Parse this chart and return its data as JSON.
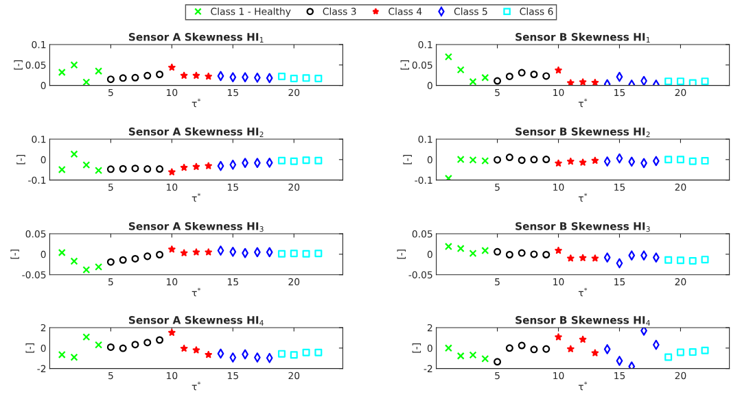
{
  "chart_data": [
    {
      "type": "scatter",
      "title": "Sensor A Skewness HI$_{1}$",
      "xlabel": "τ$^{*}$",
      "ylabel": "[-]",
      "xlim": [
        0,
        24
      ],
      "xticks": [
        5,
        10,
        15,
        20
      ],
      "ylim": [
        0,
        0.1
      ],
      "yticks": [
        0,
        0.05,
        0.1
      ],
      "legend": "top",
      "series": [
        {
          "name": "Class 1 - Healthy",
          "color": "#00ff00",
          "marker": "cross",
          "x": [
            1,
            2,
            3,
            4
          ],
          "values": [
            0.032,
            0.05,
            0.008,
            0.035
          ]
        },
        {
          "name": "Class 3",
          "color": "#000000",
          "marker": "circle",
          "x": [
            5,
            6,
            7,
            8,
            9
          ],
          "values": [
            0.015,
            0.018,
            0.019,
            0.024,
            0.027
          ]
        },
        {
          "name": "Class 4",
          "color": "#ff0000",
          "marker": "star",
          "x": [
            10,
            11,
            12,
            13
          ],
          "values": [
            0.044,
            0.024,
            0.024,
            0.022
          ]
        },
        {
          "name": "Class 5",
          "color": "#0000ff",
          "marker": "diamond",
          "x": [
            14,
            15,
            16,
            17,
            18
          ],
          "values": [
            0.023,
            0.02,
            0.02,
            0.019,
            0.018
          ]
        },
        {
          "name": "Class 6",
          "color": "#00ffff",
          "marker": "square",
          "x": [
            19,
            20,
            21,
            22
          ],
          "values": [
            0.022,
            0.017,
            0.018,
            0.017
          ]
        }
      ]
    },
    {
      "type": "scatter",
      "title": "Sensor B Skewness HI$_{1}$",
      "xlabel": "τ$^{*}$",
      "ylabel": "[-]",
      "xlim": [
        0,
        24
      ],
      "xticks": [
        5,
        10,
        15,
        20
      ],
      "ylim": [
        0,
        0.1
      ],
      "yticks": [
        0,
        0.05,
        0.1
      ],
      "series": [
        {
          "color": "#00ff00",
          "marker": "cross",
          "x": [
            1,
            2,
            3,
            4
          ],
          "values": [
            0.07,
            0.038,
            0.009,
            0.019
          ]
        },
        {
          "color": "#000000",
          "marker": "circle",
          "x": [
            5,
            6,
            7,
            8,
            9
          ],
          "values": [
            0.011,
            0.022,
            0.031,
            0.027,
            0.023
          ]
        },
        {
          "color": "#ff0000",
          "marker": "star",
          "x": [
            10,
            11,
            12,
            13
          ],
          "values": [
            0.037,
            0.006,
            0.008,
            0.007
          ]
        },
        {
          "color": "#0000ff",
          "marker": "diamond",
          "x": [
            14,
            15,
            16,
            17,
            18
          ],
          "values": [
            0.003,
            0.021,
            0.002,
            0.011,
            0.002
          ]
        },
        {
          "color": "#00ffff",
          "marker": "square",
          "x": [
            19,
            20,
            21,
            22
          ],
          "values": [
            0.01,
            0.01,
            0.006,
            0.01
          ]
        }
      ]
    },
    {
      "type": "scatter",
      "title": "Sensor A Skewness HI$_{2}$",
      "xlabel": "τ$^{*}$",
      "ylabel": "[-]",
      "xlim": [
        0,
        24
      ],
      "xticks": [
        5,
        10,
        15,
        20
      ],
      "ylim": [
        -0.1,
        0.1
      ],
      "yticks": [
        -0.1,
        0,
        0.1
      ],
      "series": [
        {
          "color": "#00ff00",
          "marker": "cross",
          "x": [
            1,
            2,
            3,
            4
          ],
          "values": [
            -0.049,
            0.027,
            -0.026,
            -0.053
          ]
        },
        {
          "color": "#000000",
          "marker": "circle",
          "x": [
            5,
            6,
            7,
            8,
            9
          ],
          "values": [
            -0.047,
            -0.045,
            -0.043,
            -0.046,
            -0.046
          ]
        },
        {
          "color": "#ff0000",
          "marker": "star",
          "x": [
            10,
            11,
            12,
            13
          ],
          "values": [
            -0.061,
            -0.039,
            -0.035,
            -0.031
          ]
        },
        {
          "color": "#0000ff",
          "marker": "diamond",
          "x": [
            14,
            15,
            16,
            17,
            18
          ],
          "values": [
            -0.031,
            -0.025,
            -0.016,
            -0.016,
            -0.015
          ]
        },
        {
          "color": "#00ffff",
          "marker": "square",
          "x": [
            19,
            20,
            21,
            22
          ],
          "values": [
            -0.005,
            -0.008,
            -0.003,
            -0.005
          ]
        }
      ]
    },
    {
      "type": "scatter",
      "title": "Sensor B Skewness HI$_{2}$",
      "xlabel": "τ$^{*}$",
      "ylabel": "[-]",
      "xlim": [
        0,
        24
      ],
      "xticks": [
        5,
        10,
        15,
        20
      ],
      "ylim": [
        -0.1,
        0.1
      ],
      "yticks": [
        -0.1,
        0,
        0.1
      ],
      "series": [
        {
          "color": "#00ff00",
          "marker": "cross",
          "x": [
            1,
            2,
            3,
            4
          ],
          "values": [
            -0.092,
            0.001,
            -0.002,
            -0.006
          ]
        },
        {
          "color": "#000000",
          "marker": "circle",
          "x": [
            5,
            6,
            7,
            8,
            9
          ],
          "values": [
            -0.001,
            0.011,
            -0.003,
            0,
            0.001
          ]
        },
        {
          "color": "#ff0000",
          "marker": "star",
          "x": [
            10,
            11,
            12,
            13
          ],
          "values": [
            -0.018,
            -0.009,
            -0.014,
            -0.005
          ]
        },
        {
          "color": "#0000ff",
          "marker": "diamond",
          "x": [
            14,
            15,
            16,
            17,
            18
          ],
          "values": [
            -0.009,
            0.006,
            -0.01,
            -0.017,
            -0.007
          ]
        },
        {
          "color": "#00ffff",
          "marker": "square",
          "x": [
            19,
            20,
            21,
            22
          ],
          "values": [
            0,
            0,
            -0.008,
            -0.006
          ]
        }
      ]
    },
    {
      "type": "scatter",
      "title": "Sensor A Skewness HI$_{3}$",
      "xlabel": "τ$^{*}$",
      "ylabel": "[-]",
      "xlim": [
        0,
        24
      ],
      "xticks": [
        5,
        10,
        15,
        20
      ],
      "ylim": [
        -0.05,
        0.05
      ],
      "yticks": [
        -0.05,
        0,
        0.05
      ],
      "series": [
        {
          "color": "#00ff00",
          "marker": "cross",
          "x": [
            1,
            2,
            3,
            4
          ],
          "values": [
            0.004,
            -0.017,
            -0.038,
            -0.031
          ]
        },
        {
          "color": "#000000",
          "marker": "circle",
          "x": [
            5,
            6,
            7,
            8,
            9
          ],
          "values": [
            -0.019,
            -0.014,
            -0.011,
            -0.005,
            -0.001
          ]
        },
        {
          "color": "#ff0000",
          "marker": "star",
          "x": [
            10,
            11,
            12,
            13
          ],
          "values": [
            0.012,
            0.003,
            0.005,
            0.005
          ]
        },
        {
          "color": "#0000ff",
          "marker": "diamond",
          "x": [
            14,
            15,
            16,
            17,
            18
          ],
          "values": [
            0.009,
            0.006,
            0.003,
            0.005,
            0.005
          ]
        },
        {
          "color": "#00ffff",
          "marker": "square",
          "x": [
            19,
            20,
            21,
            22
          ],
          "values": [
            0.001,
            0.002,
            0.001,
            0.002
          ]
        }
      ]
    },
    {
      "type": "scatter",
      "title": "Sensor B Skewness HI$_{3}$",
      "xlabel": "τ$^{*}$",
      "ylabel": "[-]",
      "xlim": [
        0,
        24
      ],
      "xticks": [
        5,
        10,
        15,
        20
      ],
      "ylim": [
        -0.05,
        0.05
      ],
      "yticks": [
        -0.05,
        0,
        0.05
      ],
      "series": [
        {
          "color": "#00ff00",
          "marker": "cross",
          "x": [
            1,
            2,
            3,
            4
          ],
          "values": [
            0.019,
            0.014,
            0.002,
            0.009
          ]
        },
        {
          "color": "#000000",
          "marker": "circle",
          "x": [
            5,
            6,
            7,
            8,
            9
          ],
          "values": [
            0.006,
            -0.001,
            0.003,
            0,
            -0.001
          ]
        },
        {
          "color": "#ff0000",
          "marker": "star",
          "x": [
            10,
            11,
            12,
            13
          ],
          "values": [
            0.009,
            -0.01,
            -0.009,
            -0.01
          ]
        },
        {
          "color": "#0000ff",
          "marker": "diamond",
          "x": [
            14,
            15,
            16,
            17,
            18
          ],
          "values": [
            -0.008,
            -0.022,
            -0.003,
            -0.003,
            -0.008
          ]
        },
        {
          "color": "#00ffff",
          "marker": "square",
          "x": [
            19,
            20,
            21,
            22
          ],
          "values": [
            -0.014,
            -0.015,
            -0.016,
            -0.013
          ]
        }
      ]
    },
    {
      "type": "scatter",
      "title": "Sensor A Skewness HI$_{4}$",
      "xlabel": "τ$^{*}$",
      "ylabel": "[-]",
      "xlim": [
        0,
        24
      ],
      "xticks": [
        5,
        10,
        15,
        20
      ],
      "ylim": [
        -2,
        2
      ],
      "yticks": [
        -2,
        0,
        2
      ],
      "series": [
        {
          "color": "#00ff00",
          "marker": "cross",
          "x": [
            1,
            2,
            3,
            4
          ],
          "values": [
            -0.65,
            -0.9,
            1.08,
            0.31
          ]
        },
        {
          "color": "#000000",
          "marker": "circle",
          "x": [
            5,
            6,
            7,
            8,
            9
          ],
          "values": [
            0.09,
            -0.02,
            0.34,
            0.54,
            0.79
          ]
        },
        {
          "color": "#ff0000",
          "marker": "star",
          "x": [
            10,
            11,
            12,
            13
          ],
          "values": [
            1.51,
            -0.04,
            -0.2,
            -0.65
          ]
        },
        {
          "color": "#0000ff",
          "marker": "diamond",
          "x": [
            14,
            15,
            16,
            17,
            18
          ],
          "values": [
            -0.54,
            -0.92,
            -0.61,
            -0.92,
            -0.97
          ]
        },
        {
          "color": "#00ffff",
          "marker": "square",
          "x": [
            19,
            20,
            21,
            22
          ],
          "values": [
            -0.56,
            -0.67,
            -0.43,
            -0.43
          ]
        }
      ]
    },
    {
      "type": "scatter",
      "title": "Sensor B Skewness HI$_{4}$",
      "xlabel": "τ$^{*}$",
      "ylabel": "[-]",
      "xlim": [
        0,
        24
      ],
      "xticks": [
        5,
        10,
        15,
        20
      ],
      "ylim": [
        -2,
        2
      ],
      "yticks": [
        -2,
        0,
        2
      ],
      "series": [
        {
          "color": "#00ff00",
          "marker": "cross",
          "x": [
            1,
            2,
            3,
            4
          ],
          "values": [
            0,
            -0.77,
            -0.68,
            -1.05
          ]
        },
        {
          "color": "#000000",
          "marker": "circle",
          "x": [
            5,
            6,
            7,
            8,
            9
          ],
          "values": [
            -1.34,
            0,
            0.25,
            -0.14,
            -0.09
          ]
        },
        {
          "color": "#ff0000",
          "marker": "star",
          "x": [
            10,
            11,
            12,
            13
          ],
          "values": [
            1.07,
            -0.09,
            0.84,
            -0.48
          ]
        },
        {
          "color": "#0000ff",
          "marker": "diamond",
          "x": [
            14,
            15,
            16,
            17,
            18
          ],
          "values": [
            -0.11,
            -1.25,
            -1.8,
            1.7,
            0.32
          ]
        },
        {
          "color": "#00ffff",
          "marker": "square",
          "x": [
            19,
            20,
            21,
            22
          ],
          "values": [
            -0.89,
            -0.41,
            -0.39,
            -0.23
          ]
        }
      ]
    }
  ]
}
